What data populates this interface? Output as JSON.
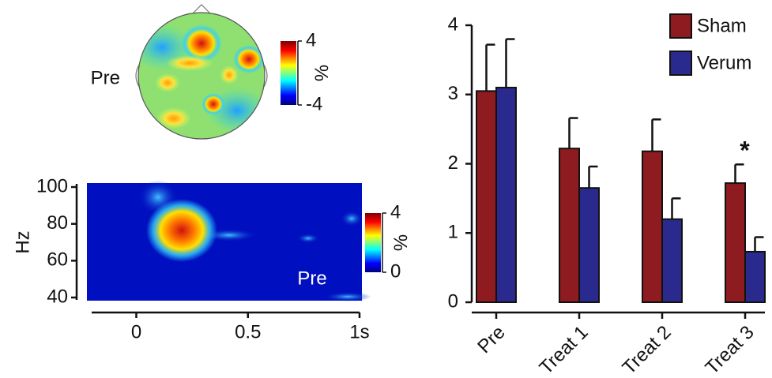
{
  "chart_data": [
    {
      "type": "topomap",
      "label": "Pre",
      "unit": "%",
      "clim": [
        -4,
        4
      ],
      "cticks": [
        -4,
        4
      ]
    },
    {
      "type": "heatmap",
      "ylabel": "Hz",
      "annotation": "Pre",
      "unit": "%",
      "xlim": [
        -0.2,
        1
      ],
      "xticks": [
        0,
        0.5,
        {
          "value": 1,
          "label": "1s"
        }
      ],
      "ylim": [
        40,
        100
      ],
      "yticks": [
        40,
        60,
        80,
        100
      ],
      "clim": [
        0,
        4
      ],
      "cticks": [
        0,
        4
      ]
    },
    {
      "type": "bar",
      "categories": [
        "Pre",
        "Treat 1",
        "Treat 2",
        "Treat 3"
      ],
      "series": [
        {
          "name": "Sham",
          "color": "#8e1b1f",
          "values": [
            3.05,
            2.22,
            2.18,
            1.72
          ],
          "errors": [
            0.67,
            0.44,
            0.46,
            0.27
          ]
        },
        {
          "name": "Verum",
          "color": "#2a2a8e",
          "values": [
            3.1,
            1.65,
            1.2,
            0.73
          ],
          "errors": [
            0.7,
            0.31,
            0.3,
            0.21
          ]
        }
      ],
      "ylim": [
        0,
        4
      ],
      "yticks": [
        0,
        1,
        2,
        3,
        4
      ],
      "annotation": "*"
    }
  ]
}
